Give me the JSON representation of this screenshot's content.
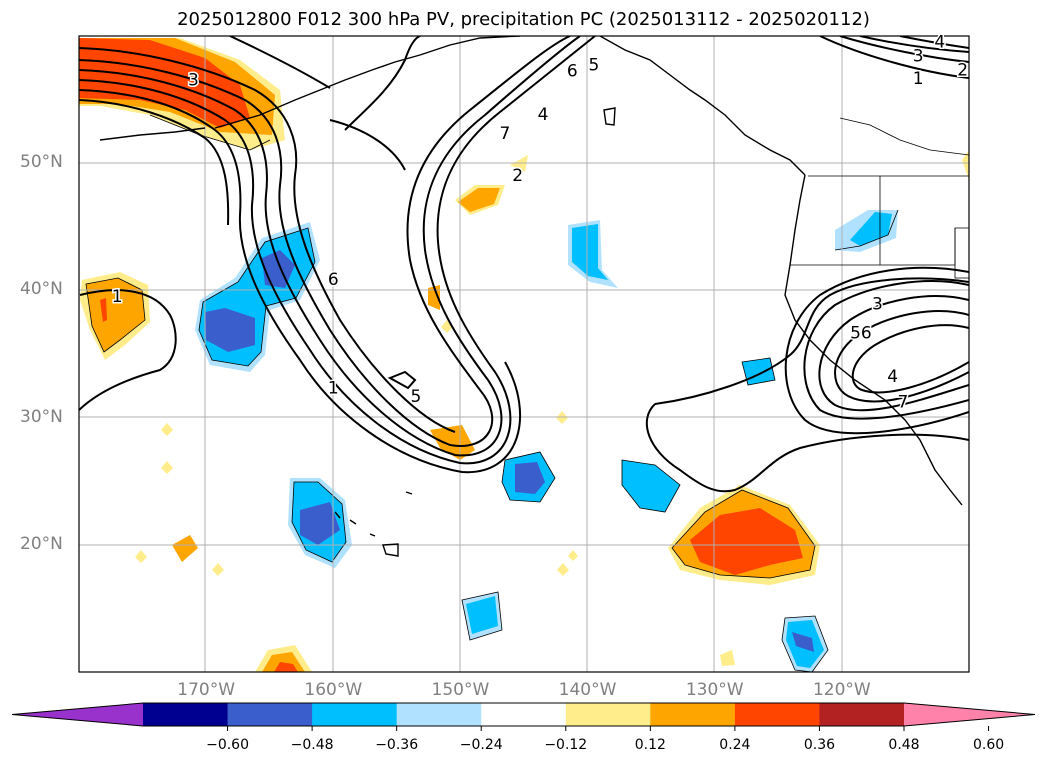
{
  "title": "2025012800 F012 300 hPa PV, precipitation PC (2025013112 - 2025020112)",
  "map": {
    "lat_labels": [
      {
        "text": "50°N",
        "value": 50
      },
      {
        "text": "40°N",
        "value": 40
      },
      {
        "text": "30°N",
        "value": 30
      },
      {
        "text": "20°N",
        "value": 20
      }
    ],
    "lon_labels": [
      {
        "text": "170°W",
        "value": -170
      },
      {
        "text": "160°W",
        "value": -160
      },
      {
        "text": "150°W",
        "value": -150
      },
      {
        "text": "140°W",
        "value": -140
      },
      {
        "text": "130°W",
        "value": -130
      },
      {
        "text": "120°W",
        "value": -120
      }
    ],
    "contour_labels": [
      {
        "text": "3",
        "lon": -171.0,
        "lat": 56.5
      },
      {
        "text": "7",
        "lon": -146.5,
        "lat": 52.3
      },
      {
        "text": "4",
        "lon": -143.5,
        "lat": 53.8
      },
      {
        "text": "6",
        "lon": -141.2,
        "lat": 57.2
      },
      {
        "text": "5",
        "lon": -139.5,
        "lat": 57.7
      },
      {
        "text": "2",
        "lon": -145.5,
        "lat": 49.0
      },
      {
        "text": "6",
        "lon": -160.0,
        "lat": 40.8
      },
      {
        "text": "1",
        "lon": -177.0,
        "lat": 39.5
      },
      {
        "text": "1",
        "lon": -160.0,
        "lat": 32.3
      },
      {
        "text": "5",
        "lon": -153.5,
        "lat": 31.6
      },
      {
        "text": "3",
        "lon": -117.2,
        "lat": 38.9
      },
      {
        "text": "56",
        "lon": -118.5,
        "lat": 36.6
      },
      {
        "text": "4",
        "lon": -116.0,
        "lat": 33.2
      },
      {
        "text": "7",
        "lon": -115.2,
        "lat": 31.2
      },
      {
        "text": "3",
        "lon": -114.0,
        "lat": 58.4
      },
      {
        "text": "4",
        "lon": -112.3,
        "lat": 59.5
      },
      {
        "text": "1",
        "lon": -114.0,
        "lat": 56.6
      },
      {
        "text": "2",
        "lon": -110.5,
        "lat": 57.3
      }
    ]
  },
  "colorbar": {
    "colors": [
      "#9932cc",
      "#000090",
      "#3a5fcd",
      "#00bfff",
      "#b0e2ff",
      "#ffffff",
      "#ffec8b",
      "#ffa500",
      "#ff4500",
      "#b22222",
      "#ff82ab"
    ],
    "tick_labels": [
      "−0.60",
      "−0.48",
      "−0.36",
      "−0.24",
      "−0.12",
      "0.12",
      "0.24",
      "0.36",
      "0.48",
      "0.60"
    ]
  }
}
